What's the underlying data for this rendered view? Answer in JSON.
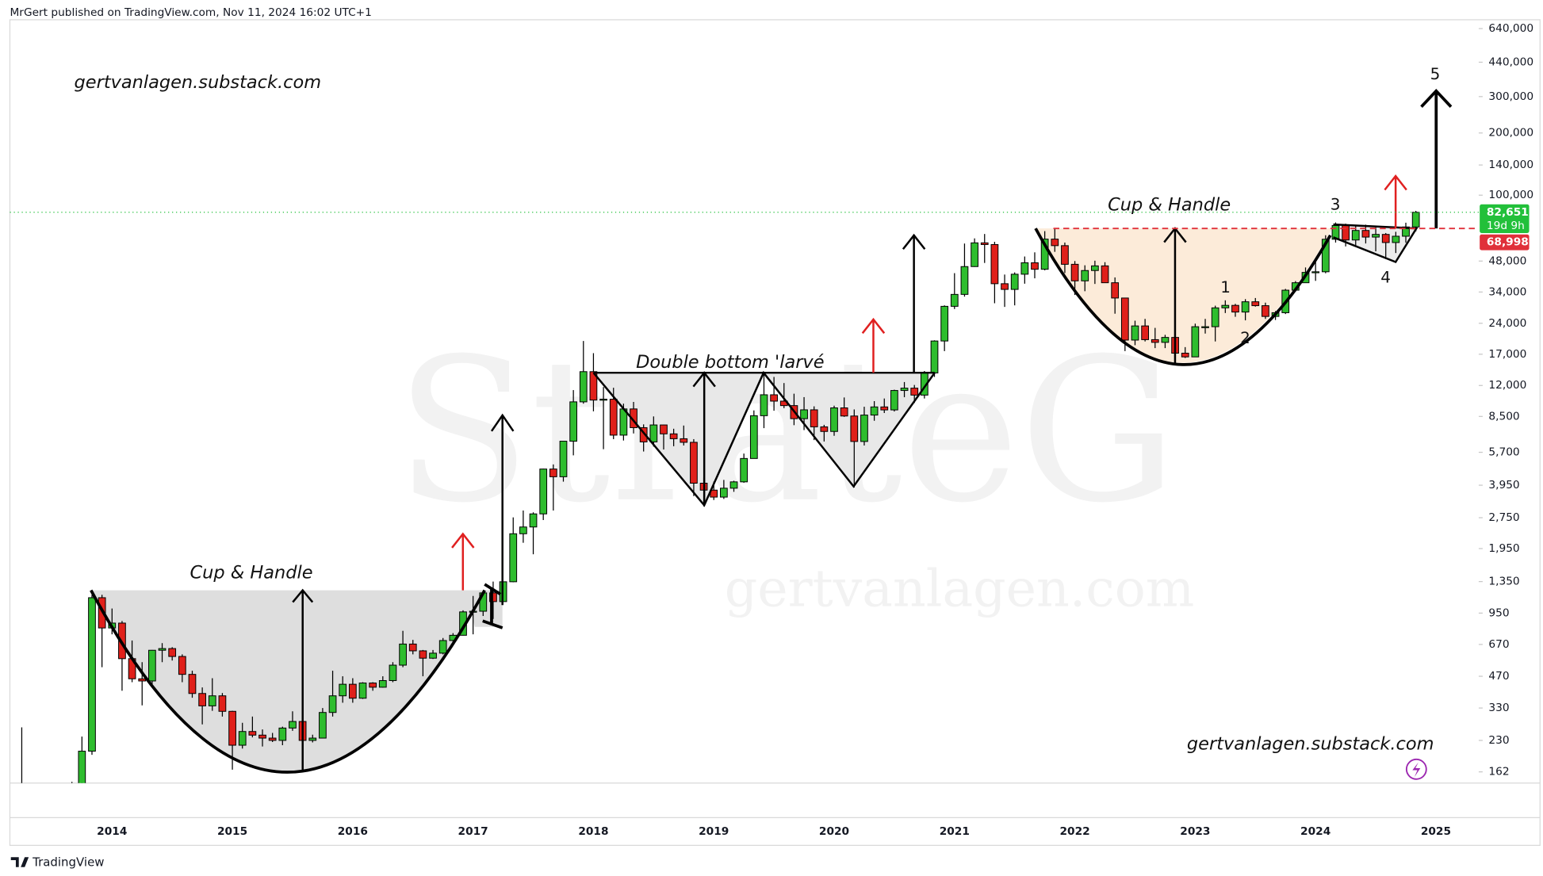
{
  "header": "MrGert published on TradingView.com, Nov 11, 2024 16:02 UTC+1",
  "footer": "TradingView",
  "chart_data": {
    "type": "candlestick",
    "log_scale": true,
    "grid": false,
    "up_color": "#2ebd2e",
    "down_color": "#e0201a",
    "wick_color": "#000000",
    "watermark": "StrateG",
    "watermark_2": "gertvanlagen.com",
    "annotations": [
      "gertvanlagen.substack.com",
      "Cup & Handle",
      "Double bottom 'larvé",
      "Cup & Handle",
      "1",
      "2",
      "3",
      "4",
      "5",
      "gertvanlagen.substack.com"
    ],
    "ylim": [
      143,
      706000
    ],
    "yticks": [
      162,
      230,
      330,
      470,
      670,
      950,
      {
        "value": 1350,
        "label": "1,350"
      },
      {
        "value": 1950,
        "label": "1,950"
      },
      {
        "value": 2750,
        "label": "2,750"
      },
      {
        "value": 3950,
        "label": "3,950"
      },
      {
        "value": 5700,
        "label": "5,700"
      },
      {
        "value": 8500,
        "label": "8,500"
      },
      {
        "value": 12000,
        "label": "12,000"
      },
      {
        "value": 17000,
        "label": "17,000"
      },
      {
        "value": 24000,
        "label": "24,000"
      },
      {
        "value": 34000,
        "label": "34,000"
      },
      {
        "value": 48000,
        "label": "48,000"
      },
      {
        "value": 100000,
        "label": "100,000"
      },
      {
        "value": 140000,
        "label": "140,000"
      },
      {
        "value": 200000,
        "label": "200,000"
      },
      {
        "value": 300000,
        "label": "300,000"
      },
      {
        "value": 440000,
        "label": "440,000"
      },
      {
        "value": 640000,
        "label": "640,000"
      }
    ],
    "price_lines": [
      {
        "value": 68998,
        "label": "68,998",
        "color": "#e0303a"
      }
    ],
    "last_price": {
      "value": 82651,
      "label": "82,651",
      "countdown": "19d 9h",
      "color": "#22c03a"
    },
    "categories": [
      null,
      null,
      null,
      null,
      null,
      null,
      null,
      null,
      null,
      "2014",
      null,
      null,
      null,
      null,
      null,
      null,
      null,
      null,
      null,
      null,
      null,
      "2015",
      null,
      null,
      null,
      null,
      null,
      null,
      null,
      null,
      null,
      null,
      null,
      "2016",
      null,
      null,
      null,
      null,
      null,
      null,
      null,
      null,
      null,
      null,
      null,
      "2017",
      null,
      null,
      null,
      null,
      null,
      null,
      null,
      null,
      null,
      null,
      null,
      "2018",
      null,
      null,
      null,
      null,
      null,
      null,
      null,
      null,
      null,
      null,
      null,
      "2019",
      null,
      null,
      null,
      null,
      null,
      null,
      null,
      null,
      null,
      null,
      null,
      "2020",
      null,
      null,
      null,
      null,
      null,
      null,
      null,
      null,
      null,
      null,
      null,
      "2021",
      null,
      null,
      null,
      null,
      null,
      null,
      null,
      null,
      null,
      null,
      null,
      "2022",
      null,
      null,
      null,
      null,
      null,
      null,
      null,
      null,
      null,
      null,
      null,
      "2023",
      null,
      null,
      null,
      null,
      null,
      null,
      null,
      null,
      null,
      null,
      null,
      "2024",
      null,
      null,
      null,
      null,
      null,
      null,
      null,
      null,
      null,
      null,
      null,
      "2025"
    ],
    "open": [
      93,
      139,
      129,
      97,
      106,
      135,
      133,
      204,
      1128,
      805,
      850,
      572,
      457,
      446,
      628,
      640,
      586,
      480,
      388,
      338,
      378,
      318,
      218,
      254,
      244,
      236,
      230,
      264,
      284,
      230,
      236,
      314,
      378,
      430,
      368,
      436,
      416,
      448,
      532,
      673,
      624,
      575,
      608,
      700,
      742,
      963,
      970,
      1190,
      1080,
      1347,
      2300,
      2480,
      2870,
      4730,
      4340,
      6450,
      10000,
      14000,
      10200,
      10300,
      6900,
      9240,
      7500,
      6400,
      7730,
      7000,
      6630,
      6370,
      4040,
      3740,
      3460,
      3820,
      4100,
      5320,
      8570,
      10820,
      10080,
      9590,
      8290,
      9150,
      7570,
      7190,
      9350,
      8540,
      6430,
      8630,
      9450,
      9140,
      11350,
      11650,
      10780,
      13800,
      19700,
      28990,
      33110,
      45140,
      58800,
      57700,
      37300,
      35000,
      41460,
      47100,
      43800,
      61300,
      57000,
      46300,
      38500,
      43200,
      45500,
      37700,
      31800,
      19900,
      23300,
      20000,
      19400,
      20500,
      17200,
      16500,
      23100,
      23100,
      28500,
      29300,
      27200,
      30500,
      29200,
      25900,
      27000,
      34700,
      37700,
      42300,
      42600,
      61200,
      71300,
      60700,
      67500,
      62700,
      64600,
      59000,
      63300,
      70200,
      null,
      null
    ],
    "high": [
      266,
      140,
      130,
      112,
      140,
      145,
      240,
      1163,
      1165,
      1000,
      870,
      700,
      550,
      630,
      680,
      650,
      600,
      500,
      415,
      460,
      390,
      320,
      280,
      300,
      260,
      250,
      268,
      318,
      288,
      245,
      330,
      500,
      470,
      460,
      440,
      440,
      470,
      550,
      780,
      705,
      630,
      630,
      720,
      760,
      980,
      1150,
      1210,
      1350,
      1350,
      2760,
      2980,
      2920,
      4750,
      4980,
      6450,
      11400,
      19700,
      17200,
      11800,
      11700,
      9800,
      9990,
      7780,
      8500,
      7760,
      7410,
      7680,
      6600,
      4310,
      4110,
      4190,
      4150,
      5620,
      9090,
      13880,
      13200,
      12330,
      10950,
      10540,
      9510,
      7740,
      9580,
      10500,
      9190,
      9470,
      10080,
      10380,
      11450,
      12470,
      12070,
      14100,
      19850,
      29300,
      41950,
      58350,
      61800,
      64900,
      59500,
      41300,
      42300,
      50500,
      52900,
      67000,
      69000,
      59000,
      48000,
      45800,
      48200,
      47400,
      40000,
      31900,
      24700,
      25200,
      22800,
      21100,
      21500,
      18400,
      23900,
      25200,
      29200,
      31000,
      29800,
      31400,
      31800,
      30200,
      27500,
      35200,
      38400,
      44700,
      48900,
      64000,
      73800,
      72800,
      71900,
      72000,
      70000,
      65600,
      66500,
      73600,
      84000,
      null,
      null
    ],
    "low": [
      50,
      80,
      88,
      65,
      99,
      110,
      105,
      196,
      520,
      750,
      400,
      440,
      340,
      430,
      550,
      560,
      440,
      370,
      275,
      320,
      300,
      166,
      210,
      238,
      215,
      226,
      218,
      256,
      198,
      225,
      236,
      300,
      350,
      350,
      365,
      400,
      414,
      440,
      520,
      600,
      470,
      570,
      600,
      680,
      740,
      750,
      920,
      890,
      1080,
      1340,
      2080,
      1830,
      2680,
      2980,
      4110,
      5510,
      9800,
      9000,
      5900,
      6600,
      6500,
      7030,
      5750,
      6070,
      5880,
      6100,
      6150,
      3500,
      3120,
      3350,
      3390,
      3670,
      4060,
      5320,
      7460,
      9060,
      9320,
      7710,
      7300,
      6530,
      6430,
      6850,
      8460,
      3850,
      6150,
      8100,
      8830,
      8980,
      10530,
      9880,
      10380,
      13200,
      17600,
      28130,
      32300,
      45000,
      47000,
      30000,
      28800,
      29300,
      37300,
      39600,
      43300,
      53200,
      42000,
      32900,
      34300,
      37200,
      37600,
      26700,
      17600,
      18800,
      19600,
      18200,
      18200,
      15500,
      16300,
      16500,
      21400,
      19600,
      26900,
      25800,
      24800,
      28900,
      25200,
      24900,
      26600,
      34100,
      37600,
      38500,
      41900,
      59000,
      56500,
      56600,
      58400,
      53500,
      49100,
      52500,
      58900,
      66800,
      null,
      null
    ],
    "close": [
      139,
      129,
      97,
      106,
      135,
      133,
      204,
      1128,
      805,
      850,
      572,
      457,
      446,
      628,
      640,
      586,
      480,
      388,
      338,
      378,
      318,
      218,
      254,
      244,
      236,
      230,
      264,
      284,
      230,
      236,
      314,
      378,
      430,
      368,
      436,
      416,
      448,
      532,
      673,
      624,
      575,
      608,
      700,
      742,
      963,
      970,
      1190,
      1080,
      1347,
      2300,
      2480,
      2870,
      4730,
      4340,
      6450,
      10000,
      14000,
      10200,
      10300,
      6900,
      9240,
      7500,
      6400,
      7730,
      7000,
      6630,
      6370,
      4040,
      3740,
      3460,
      3820,
      4100,
      5320,
      8570,
      10820,
      10080,
      9590,
      8290,
      9150,
      7570,
      7190,
      9350,
      8540,
      6430,
      8630,
      9450,
      9140,
      11350,
      11650,
      10780,
      13800,
      19700,
      28990,
      33110,
      45140,
      58800,
      57700,
      37300,
      35000,
      41460,
      47100,
      43800,
      61300,
      57000,
      46300,
      38500,
      43200,
      45500,
      37700,
      31800,
      19900,
      23300,
      20000,
      19400,
      20500,
      17200,
      16500,
      23100,
      23100,
      28500,
      29300,
      27200,
      30500,
      29200,
      25900,
      27000,
      34700,
      37700,
      42300,
      42600,
      61200,
      71300,
      60700,
      67500,
      62700,
      64600,
      59000,
      63300,
      70200,
      82651,
      null,
      null
    ]
  }
}
